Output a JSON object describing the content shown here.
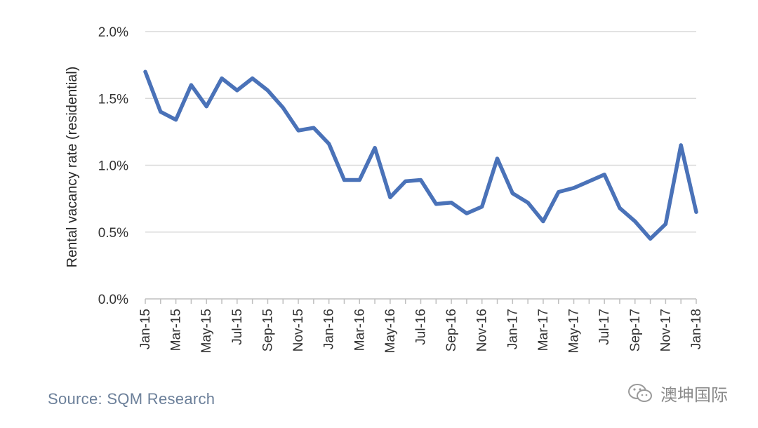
{
  "chart_data": {
    "type": "line",
    "title": "",
    "xlabel": "",
    "ylabel": "Rental vacancy rate (residential)",
    "ylim": [
      0,
      2.0
    ],
    "y_ticks": [
      "0.0%",
      "0.5%",
      "1.0%",
      "1.5%",
      "2.0%"
    ],
    "x_tick_labels": [
      "Jan-15",
      "Mar-15",
      "May-15",
      "Jul-15",
      "Sep-15",
      "Nov-15",
      "Jan-16",
      "Mar-16",
      "May-16",
      "Jul-16",
      "Sep-16",
      "Nov-16",
      "Jan-17",
      "Mar-17",
      "May-17",
      "Jul-17",
      "Sep-17",
      "Nov-17",
      "Jan-18"
    ],
    "grid": true,
    "legend": "none",
    "line_color": "#4a72b8",
    "x": [
      "Jan-15",
      "Feb-15",
      "Mar-15",
      "Apr-15",
      "May-15",
      "Jun-15",
      "Jul-15",
      "Aug-15",
      "Sep-15",
      "Oct-15",
      "Nov-15",
      "Dec-15",
      "Jan-16",
      "Feb-16",
      "Mar-16",
      "Apr-16",
      "May-16",
      "Jun-16",
      "Jul-16",
      "Aug-16",
      "Sep-16",
      "Oct-16",
      "Nov-16",
      "Dec-16",
      "Jan-17",
      "Feb-17",
      "Mar-17",
      "Apr-17",
      "May-17",
      "Jun-17",
      "Jul-17",
      "Aug-17",
      "Sep-17",
      "Oct-17",
      "Nov-17",
      "Dec-17",
      "Jan-18"
    ],
    "values": [
      1.7,
      1.4,
      1.34,
      1.6,
      1.44,
      1.65,
      1.56,
      1.65,
      1.56,
      1.43,
      1.26,
      1.28,
      1.16,
      0.89,
      0.89,
      1.13,
      0.76,
      0.88,
      0.89,
      0.71,
      0.72,
      0.64,
      0.69,
      1.05,
      0.79,
      0.72,
      0.58,
      0.8,
      0.83,
      0.88,
      0.93,
      0.68,
      0.58,
      0.45,
      0.56,
      1.15,
      0.65
    ]
  },
  "source": "Source: SQM Research",
  "watermark": {
    "text": "澳坤国际",
    "icon": "wechat-icon"
  }
}
